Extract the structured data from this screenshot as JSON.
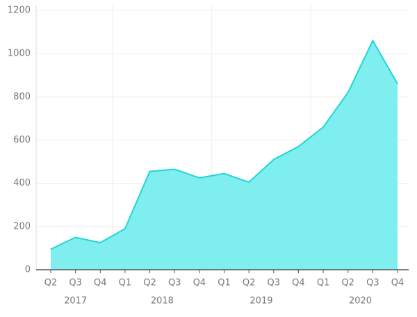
{
  "chart_data": {
    "type": "area",
    "categories": [
      "Q2",
      "Q3",
      "Q4",
      "Q1",
      "Q2",
      "Q3",
      "Q4",
      "Q1",
      "Q2",
      "Q3",
      "Q4",
      "Q1",
      "Q2",
      "Q3",
      "Q4"
    ],
    "groups": [
      {
        "name": "2017",
        "count": 3
      },
      {
        "name": "2018",
        "count": 4
      },
      {
        "name": "2019",
        "count": 4
      },
      {
        "name": "2020",
        "count": 4
      }
    ],
    "values": [
      95,
      150,
      125,
      190,
      455,
      465,
      425,
      445,
      405,
      510,
      570,
      660,
      820,
      1060,
      860
    ],
    "color": "#7eeeee",
    "line_color": "#1fd6d6",
    "ylim": [
      0,
      1200
    ],
    "yticks": [
      0,
      200,
      400,
      600,
      800,
      1000,
      1200
    ],
    "grid": true
  }
}
